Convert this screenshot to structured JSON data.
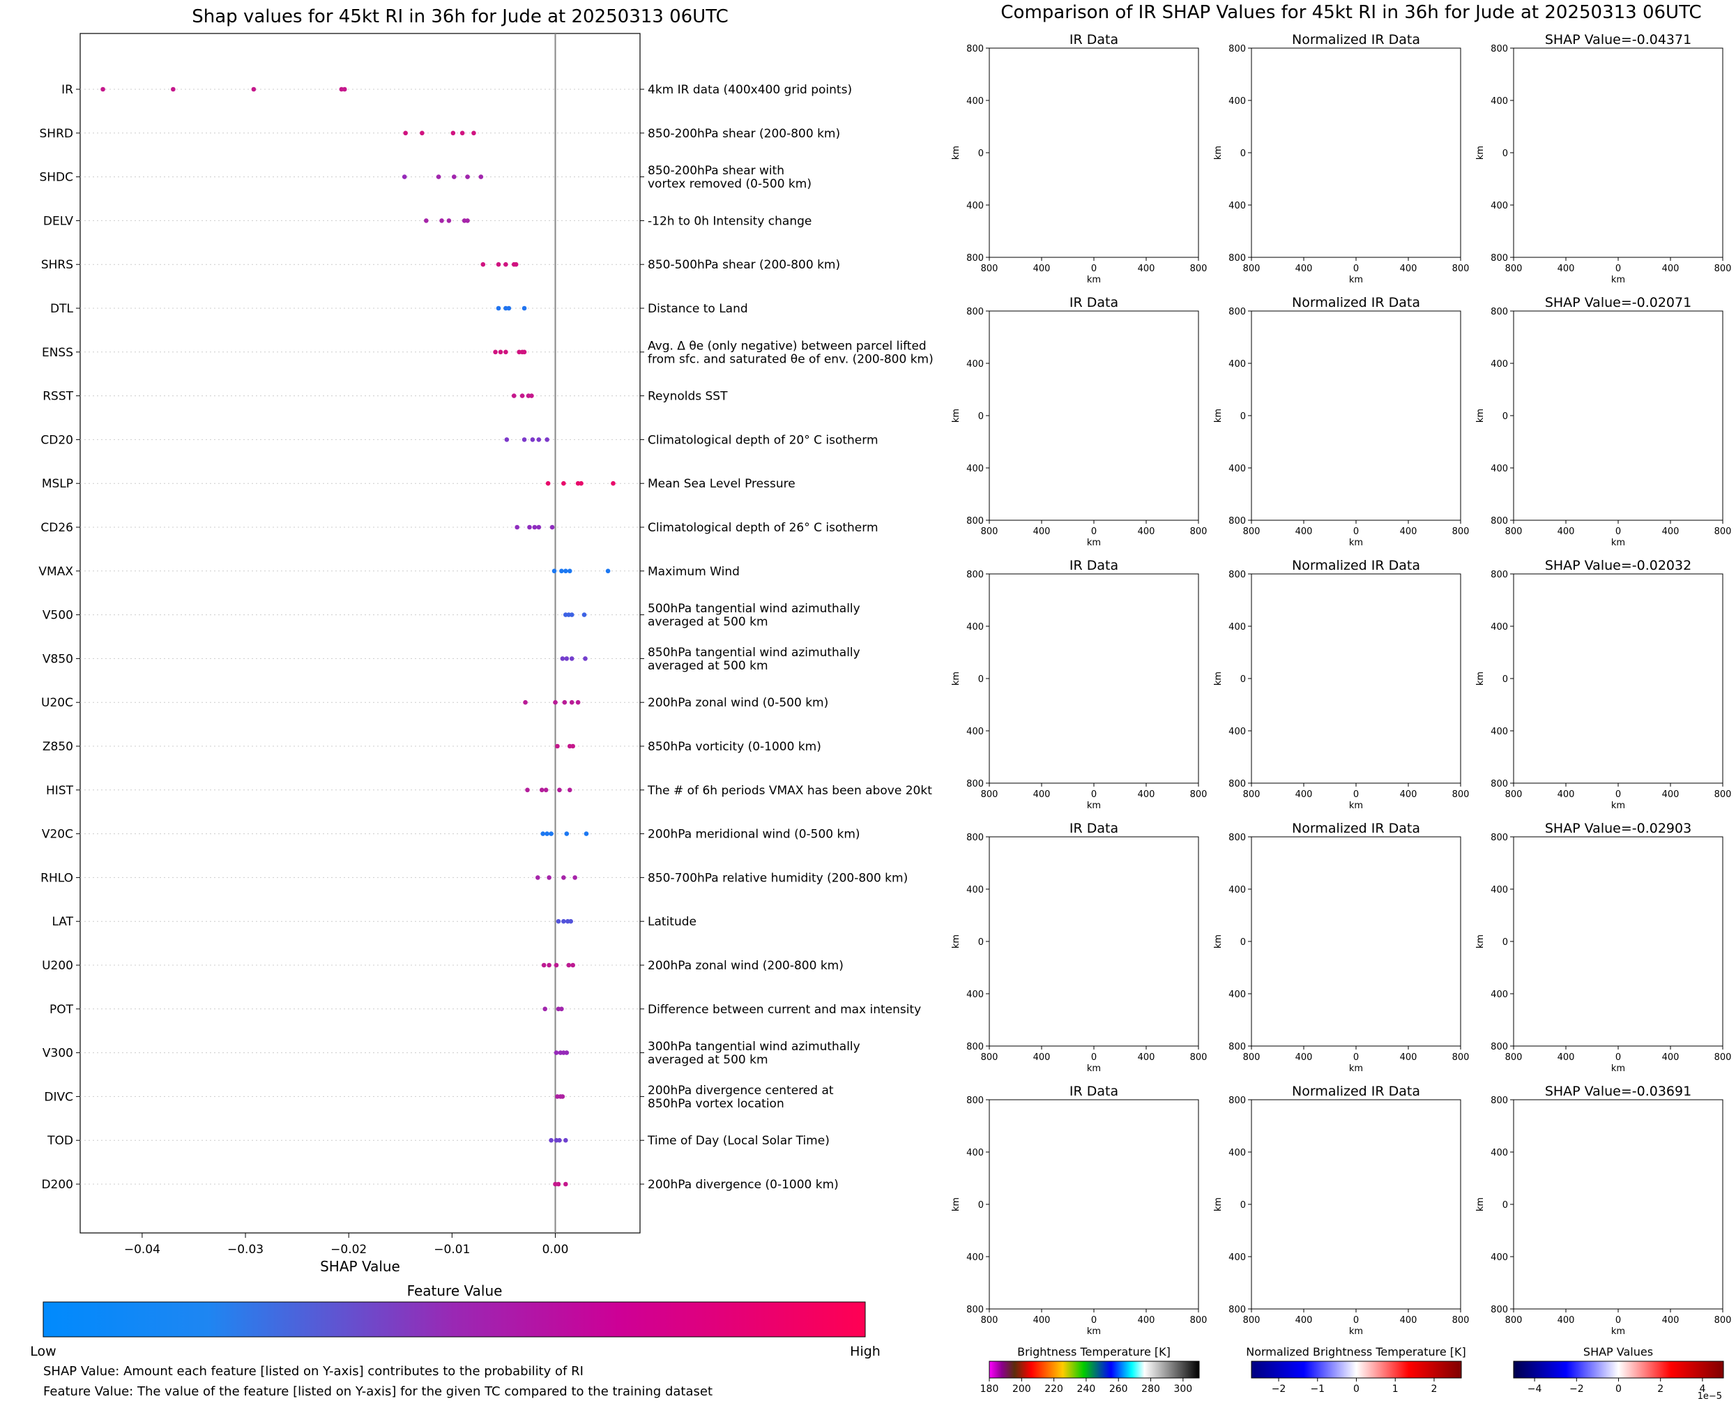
{
  "left_title": "Shap values for 45kt RI in 36h for Jude at 20250313 06UTC",
  "right_title": "Comparison of IR SHAP Values for 45kt RI in 36h for Jude at 20250313 06UTC",
  "colorbar": {
    "title": "Feature Value",
    "low_label": "Low",
    "high_label": "High",
    "low_color": "#008afd",
    "mid_color": "#8a2fc4",
    "high_color": "#ff0053"
  },
  "footnotes": {
    "shap_note": "SHAP Value: Amount each feature [listed on Y-axis] contributes to the probability of RI",
    "feature_note": "Feature Value: The value of the feature [listed on Y-axis] for the given TC compared to the training dataset"
  },
  "chart_data": [
    {
      "type": "scatter",
      "title": "Shap values for 45kt RI in 36h for Jude at 20250313 06UTC",
      "xlabel": "SHAP Value",
      "ylabel": "",
      "xlim": [
        -0.046,
        0.0082
      ],
      "xticks": [
        -0.04,
        -0.03,
        -0.02,
        -0.01,
        0.0
      ],
      "xtick_labels": [
        "−0.04",
        "−0.03",
        "−0.02",
        "−0.01",
        "0.00"
      ],
      "features": [
        {
          "name": "IR",
          "desc": [
            "4km IR data (400x400 grid points)"
          ],
          "shap": [
            -0.0438,
            -0.037,
            -0.0292,
            -0.0207,
            -0.0204
          ],
          "fv": [
            0.75,
            0.75,
            0.75,
            0.75,
            0.75
          ]
        },
        {
          "name": "SHRD",
          "desc": [
            "850-200hPa shear (200-800 km)"
          ],
          "shap": [
            -0.0145,
            -0.0129,
            -0.0099,
            -0.009,
            -0.0079
          ],
          "fv": [
            0.8,
            0.8,
            0.8,
            0.8,
            0.8
          ]
        },
        {
          "name": "SHDC",
          "desc": [
            "850-200hPa shear with",
            "vortex removed (0-500 km)"
          ],
          "shap": [
            -0.0146,
            -0.0113,
            -0.0098,
            -0.0085,
            -0.0072
          ],
          "fv": [
            0.55,
            0.6,
            0.6,
            0.6,
            0.6
          ]
        },
        {
          "name": "DELV",
          "desc": [
            "-12h to 0h Intensity change"
          ],
          "shap": [
            -0.0125,
            -0.011,
            -0.0103,
            -0.0088,
            -0.0085
          ],
          "fv": [
            0.62,
            0.62,
            0.62,
            0.62,
            0.62
          ]
        },
        {
          "name": "SHRS",
          "desc": [
            "850-500hPa shear (200-800 km)"
          ],
          "shap": [
            -0.007,
            -0.0055,
            -0.0048,
            -0.004,
            -0.0038
          ],
          "fv": [
            0.8,
            0.8,
            0.8,
            0.8,
            0.8
          ]
        },
        {
          "name": "DTL",
          "desc": [
            "Distance to Land"
          ],
          "shap": [
            -0.0055,
            -0.0048,
            -0.0045,
            -0.003
          ],
          "fv": [
            0.12,
            0.12,
            0.12,
            0.12
          ]
        },
        {
          "name": "ENSS",
          "desc": [
            "Avg. Δ θe (only negative) between parcel lifted",
            "from sfc. and saturated θe of env. (200-800 km)"
          ],
          "shap": [
            -0.0058,
            -0.0053,
            -0.0048,
            -0.0035,
            -0.0032,
            -0.003
          ],
          "fv": [
            0.8,
            0.8,
            0.8,
            0.8,
            0.8,
            0.8
          ]
        },
        {
          "name": "RSST",
          "desc": [
            "Reynolds SST"
          ],
          "shap": [
            -0.004,
            -0.0032,
            -0.0026,
            -0.0023
          ],
          "fv": [
            0.75,
            0.75,
            0.75,
            0.75
          ]
        },
        {
          "name": "CD20",
          "desc": [
            "Climatological depth of 20° C isotherm"
          ],
          "shap": [
            -0.0047,
            -0.003,
            -0.0022,
            -0.0016,
            -0.0008
          ],
          "fv": [
            0.45,
            0.45,
            0.45,
            0.45,
            0.45
          ]
        },
        {
          "name": "MSLP",
          "desc": [
            "Mean Sea Level Pressure"
          ],
          "shap": [
            -0.0007,
            0.0008,
            0.0022,
            0.0025,
            0.0056
          ],
          "fv": [
            0.9,
            0.9,
            0.9,
            0.9,
            0.9
          ]
        },
        {
          "name": "CD26",
          "desc": [
            "Climatological depth of 26° C isotherm"
          ],
          "shap": [
            -0.0037,
            -0.0025,
            -0.002,
            -0.0016,
            -0.0003
          ],
          "fv": [
            0.52,
            0.52,
            0.52,
            0.52,
            0.52
          ]
        },
        {
          "name": "VMAX",
          "desc": [
            "Maximum Wind"
          ],
          "shap": [
            -0.0001,
            0.0006,
            0.001,
            0.0014,
            0.0051
          ],
          "fv": [
            0.1,
            0.1,
            0.1,
            0.1,
            0.1
          ]
        },
        {
          "name": "V500",
          "desc": [
            "500hPa tangential wind azimuthally",
            "averaged at 500 km"
          ],
          "shap": [
            0.001,
            0.0013,
            0.0016,
            0.0028
          ],
          "fv": [
            0.22,
            0.22,
            0.22,
            0.22
          ]
        },
        {
          "name": "V850",
          "desc": [
            "850hPa tangential wind azimuthally",
            "averaged at 500 km"
          ],
          "shap": [
            0.0007,
            0.0011,
            0.0016,
            0.0029
          ],
          "fv": [
            0.42,
            0.42,
            0.42,
            0.42
          ]
        },
        {
          "name": "U20C",
          "desc": [
            "200hPa zonal wind (0-500 km)"
          ],
          "shap": [
            -0.0029,
            0.0,
            0.0009,
            0.0016,
            0.0022
          ],
          "fv": [
            0.7,
            0.7,
            0.7,
            0.7,
            0.7
          ]
        },
        {
          "name": "Z850",
          "desc": [
            "850hPa vorticity (0-1000 km)"
          ],
          "shap": [
            0.0002,
            0.0014,
            0.0017
          ],
          "fv": [
            0.75,
            0.75,
            0.75
          ]
        },
        {
          "name": "HIST",
          "desc": [
            "The # of 6h periods VMAX has been above 20kt"
          ],
          "shap": [
            -0.0027,
            -0.0013,
            -0.0009,
            0.0004,
            0.0014
          ],
          "fv": [
            0.68,
            0.68,
            0.68,
            0.68,
            0.68
          ]
        },
        {
          "name": "V20C",
          "desc": [
            "200hPa meridional wind (0-500 km)"
          ],
          "shap": [
            -0.0012,
            -0.0008,
            -0.0004,
            0.0011,
            0.003
          ],
          "fv": [
            0.1,
            0.1,
            0.1,
            0.1,
            0.1
          ]
        },
        {
          "name": "RHLO",
          "desc": [
            "850-700hPa relative humidity (200-800 km)"
          ],
          "shap": [
            -0.0017,
            -0.0006,
            0.0008,
            0.0019
          ],
          "fv": [
            0.62,
            0.62,
            0.62,
            0.62
          ]
        },
        {
          "name": "LAT",
          "desc": [
            "Latitude"
          ],
          "shap": [
            0.0003,
            0.0008,
            0.0012,
            0.0015
          ],
          "fv": [
            0.3,
            0.3,
            0.3,
            0.3
          ]
        },
        {
          "name": "U200",
          "desc": [
            "200hPa zonal wind (200-800 km)"
          ],
          "shap": [
            -0.0011,
            -0.0006,
            0.0001,
            0.0013,
            0.0017
          ],
          "fv": [
            0.72,
            0.72,
            0.72,
            0.72,
            0.72
          ]
        },
        {
          "name": "POT",
          "desc": [
            "Difference between current and max intensity"
          ],
          "shap": [
            -0.001,
            0.0003,
            0.0006
          ],
          "fv": [
            0.6,
            0.6,
            0.6
          ]
        },
        {
          "name": "V300",
          "desc": [
            "300hPa tangential wind azimuthally",
            "averaged at 500 km"
          ],
          "shap": [
            0.0001,
            0.0005,
            0.0008,
            0.0011
          ],
          "fv": [
            0.55,
            0.55,
            0.55,
            0.55
          ]
        },
        {
          "name": "DIVC",
          "desc": [
            "200hPa divergence centered at",
            "850hPa vortex location"
          ],
          "shap": [
            0.0002,
            0.0005,
            0.0007
          ],
          "fv": [
            0.65,
            0.65,
            0.65
          ]
        },
        {
          "name": "TOD",
          "desc": [
            "Time of Day (Local Solar Time)"
          ],
          "shap": [
            -0.0004,
            0.0001,
            0.0004,
            0.001
          ],
          "fv": [
            0.4,
            0.4,
            0.4,
            0.4
          ]
        },
        {
          "name": "D200",
          "desc": [
            "200hPa divergence (0-1000 km)"
          ],
          "shap": [
            0.0,
            0.0003,
            0.001
          ],
          "fv": [
            0.75,
            0.75,
            0.75
          ]
        }
      ]
    },
    {
      "type": "heatmap",
      "title": "Comparison of IR SHAP Values for 45kt RI in 36h for Jude at 20250313 06UTC",
      "column_titles": [
        "IR Data",
        "Normalized IR Data"
      ],
      "shap_titles": [
        "SHAP Value=-0.04371",
        "SHAP Value=-0.02071",
        "SHAP Value=-0.02032",
        "SHAP Value=-0.02903",
        "SHAP Value=-0.03691"
      ],
      "axis_label": "km",
      "axis_ticks": [
        "800",
        "400",
        "0",
        "400",
        "800"
      ],
      "colorbars": [
        {
          "label": "Brightness Temperature [K]",
          "ticks": [
            "180",
            "200",
            "220",
            "240",
            "260",
            "280",
            "300"
          ],
          "range": [
            180,
            310
          ]
        },
        {
          "label": "Normalized Brightness Temperature [K]",
          "ticks": [
            "−2",
            "−1",
            "0",
            "1",
            "2"
          ],
          "range": [
            -2.7,
            2.7
          ]
        },
        {
          "label": "SHAP Values",
          "ticks": [
            "−4",
            "−2",
            "0",
            "2",
            "4"
          ],
          "range": [
            -5,
            5
          ],
          "scale_label": "1e−5"
        }
      ]
    }
  ]
}
